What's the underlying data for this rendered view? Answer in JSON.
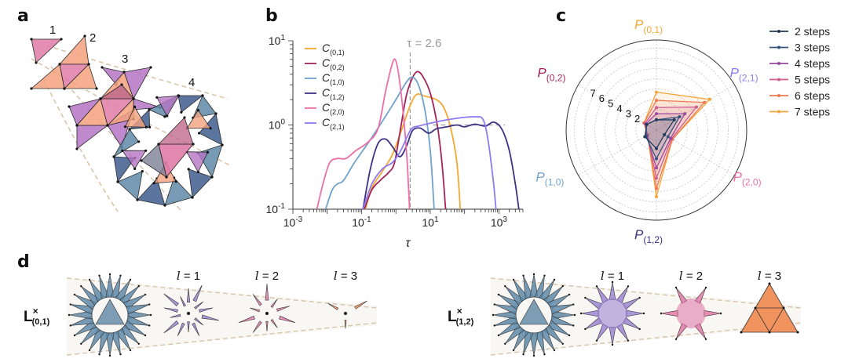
{
  "panels": {
    "a": {
      "label": "a",
      "step_labels": [
        "1",
        "2",
        "3",
        "4"
      ]
    },
    "b": {
      "label": "b"
    },
    "c": {
      "label": "c"
    },
    "d": {
      "label": "d"
    }
  },
  "colors": {
    "orange": "#f5a733",
    "crimson": "#a3245a",
    "lightblue": "#6fa2cc",
    "navy": "#3d3285",
    "pink": "#ec6fa6",
    "lavender": "#8f7af0",
    "steel": "#5f8aa8",
    "purple": "#b574c4",
    "salmon": "#f4a27e",
    "rose": "#e07ba8",
    "arrow": "#d8c7ad",
    "step2": "#1f3c5f",
    "step3": "#34547e",
    "step4": "#9a4a9e",
    "step5": "#cf5b8f",
    "step6": "#f07a52",
    "step7": "#f6a53a",
    "grid": "#bdbdbd",
    "dash": "#9a9a9a"
  },
  "chart_data": [
    {
      "panel": "b",
      "type": "line",
      "title": "",
      "xlabel": "τ",
      "ylabel": "",
      "xscale": "log",
      "yscale": "log",
      "xlim": [
        0.001,
        5000
      ],
      "ylim": [
        0.1,
        10
      ],
      "x_ticks": [
        {
          "value": 0.001,
          "label": "10",
          "exp": "-3"
        },
        {
          "value": 0.1,
          "label": "10",
          "exp": "-1"
        },
        {
          "value": 10,
          "label": "10",
          "exp": "1"
        },
        {
          "value": 1000,
          "label": "10",
          "exp": "3"
        }
      ],
      "y_ticks": [
        {
          "value": 0.1,
          "label": "10",
          "exp": "-1"
        },
        {
          "value": 1,
          "label": "10",
          "exp": "0"
        },
        {
          "value": 10,
          "label": "10",
          "exp": "1"
        }
      ],
      "legend_position": "top-left",
      "annotation": {
        "text": "τ = 2.6",
        "x": 2.6
      },
      "reference_line": {
        "y": 1.0,
        "x_from": 12,
        "x_to": 1500
      },
      "series": [
        {
          "name": "C(0,1)",
          "base": "C",
          "sub": "(0,1)",
          "color_key": "orange",
          "points": [
            [
              0.13,
              0.1
            ],
            [
              0.2,
              0.18
            ],
            [
              0.4,
              0.28
            ],
            [
              0.8,
              0.45
            ],
            [
              1.5,
              0.9
            ],
            [
              2.6,
              1.7
            ],
            [
              4,
              2.3
            ],
            [
              7,
              2.2
            ],
            [
              15,
              2.0
            ],
            [
              25,
              1.6
            ],
            [
              40,
              0.9
            ],
            [
              60,
              0.35
            ],
            [
              75,
              0.1
            ]
          ]
        },
        {
          "name": "C(0,2)",
          "base": "C",
          "sub": "(0,2)",
          "color_key": "crimson",
          "points": [
            [
              0.12,
              0.1
            ],
            [
              0.2,
              0.17
            ],
            [
              0.35,
              0.22
            ],
            [
              0.6,
              0.27
            ],
            [
              0.9,
              0.35
            ],
            [
              1.3,
              0.8
            ],
            [
              2.0,
              2.2
            ],
            [
              3,
              3.6
            ],
            [
              4.2,
              4.3
            ],
            [
              6,
              3.8
            ],
            [
              10,
              2.4
            ],
            [
              16,
              1.0
            ],
            [
              22,
              0.35
            ],
            [
              28,
              0.1
            ]
          ]
        },
        {
          "name": "C(1,0)",
          "base": "C",
          "sub": "(1,0)",
          "color_key": "lightblue",
          "points": [
            [
              0.009,
              0.1
            ],
            [
              0.014,
              0.17
            ],
            [
              0.02,
              0.2
            ],
            [
              0.03,
              0.22
            ],
            [
              0.06,
              0.35
            ],
            [
              0.15,
              0.6
            ],
            [
              0.4,
              1.1
            ],
            [
              1,
              2.0
            ],
            [
              2,
              3.2
            ],
            [
              3,
              3.7
            ],
            [
              4.5,
              3.0
            ],
            [
              7,
              1.5
            ],
            [
              10,
              0.5
            ],
            [
              13,
              0.1
            ]
          ]
        },
        {
          "name": "C(1,2)",
          "base": "C",
          "sub": "(1,2)",
          "color_key": "navy",
          "points": [
            [
              0.11,
              0.1
            ],
            [
              0.18,
              0.3
            ],
            [
              0.3,
              0.6
            ],
            [
              0.5,
              0.68
            ],
            [
              0.8,
              0.55
            ],
            [
              1.3,
              0.42
            ],
            [
              2,
              0.55
            ],
            [
              3,
              0.85
            ],
            [
              5,
              0.92
            ],
            [
              9,
              0.8
            ],
            [
              15,
              0.9
            ],
            [
              30,
              0.95
            ],
            [
              60,
              1.0
            ],
            [
              100,
              0.95
            ],
            [
              200,
              1.02
            ],
            [
              400,
              0.97
            ],
            [
              700,
              1.08
            ],
            [
              1200,
              0.9
            ],
            [
              2000,
              0.5
            ],
            [
              3000,
              0.2
            ],
            [
              3800,
              0.1
            ]
          ]
        },
        {
          "name": "C(2,0)",
          "base": "C",
          "sub": "(2,0)",
          "color_key": "pink",
          "points": [
            [
              0.005,
              0.1
            ],
            [
              0.008,
              0.22
            ],
            [
              0.012,
              0.36
            ],
            [
              0.02,
              0.4
            ],
            [
              0.035,
              0.4
            ],
            [
              0.07,
              0.5
            ],
            [
              0.15,
              0.62
            ],
            [
              0.3,
              0.9
            ],
            [
              0.5,
              2.5
            ],
            [
              0.75,
              5.0
            ],
            [
              0.95,
              6.0
            ],
            [
              1.2,
              4.0
            ],
            [
              1.6,
              1.5
            ],
            [
              2.1,
              0.4
            ],
            [
              2.5,
              0.1
            ]
          ]
        },
        {
          "name": "C(2,1)",
          "base": "C",
          "sub": "(2,1)",
          "color_key": "lavender",
          "points": [
            [
              0.11,
              0.1
            ],
            [
              0.2,
              0.2
            ],
            [
              0.4,
              0.3
            ],
            [
              0.8,
              0.36
            ],
            [
              1.4,
              0.5
            ],
            [
              2.2,
              0.75
            ],
            [
              3,
              0.92
            ],
            [
              5,
              0.98
            ],
            [
              10,
              1.05
            ],
            [
              30,
              1.15
            ],
            [
              80,
              1.22
            ],
            [
              200,
              1.25
            ],
            [
              350,
              1.15
            ],
            [
              500,
              0.6
            ],
            [
              700,
              0.2
            ],
            [
              820,
              0.1
            ]
          ]
        }
      ]
    },
    {
      "panel": "c",
      "type": "radar",
      "title": "",
      "axes": [
        {
          "name": "P(0,1)",
          "base": "P",
          "sub": "(0,1)",
          "color_key": "orange"
        },
        {
          "name": "P(2,1)",
          "base": "P",
          "sub": "(2,1)",
          "color_key": "lavender"
        },
        {
          "name": "P(2,0)",
          "base": "P",
          "sub": "(2,0)",
          "color_key": "pink"
        },
        {
          "name": "P(1,2)",
          "base": "P",
          "sub": "(1,2)",
          "color_key": "navy"
        },
        {
          "name": "P(1,0)",
          "base": "P",
          "sub": "(1,0)",
          "color_key": "lightblue"
        },
        {
          "name": "P(0,2)",
          "base": "P",
          "sub": "(0,2)",
          "color_key": "crimson"
        }
      ],
      "radial_ticks": [
        "2",
        "3",
        "4",
        "5",
        "6",
        "7"
      ],
      "radial_range": [
        0,
        8.8
      ],
      "rings": 8,
      "legend_position": "right",
      "series": [
        {
          "name": "2 steps",
          "color_key": "step2",
          "values": [
            1.0,
            2.0,
            0.9,
            1.8,
            1.3,
            1.1
          ]
        },
        {
          "name": "3 steps",
          "color_key": "step3",
          "values": [
            1.0,
            2.6,
            1.3,
            2.8,
            1.2,
            1.1
          ]
        },
        {
          "name": "4 steps",
          "color_key": "step4",
          "values": [
            1.6,
            3.2,
            1.6,
            3.7,
            1.1,
            1.2
          ]
        },
        {
          "name": "5 steps",
          "color_key": "step5",
          "values": [
            2.2,
            4.5,
            1.7,
            4.7,
            1.0,
            1.3
          ]
        },
        {
          "name": "6 steps",
          "color_key": "step6",
          "values": [
            2.9,
            5.4,
            1.8,
            5.7,
            1.0,
            1.4
          ]
        },
        {
          "name": "7 steps",
          "color_key": "step7",
          "values": [
            3.7,
            6.0,
            1.8,
            6.5,
            1.0,
            1.4
          ]
        }
      ]
    }
  ],
  "panel_d": {
    "rows": [
      {
        "label_base": "L",
        "label_sup": "×",
        "label_sub": "(0,1)",
        "levels": [
          {
            "prefix": "l",
            "eq": " = 1"
          },
          {
            "prefix": "l",
            "eq": " = 2"
          },
          {
            "prefix": "l",
            "eq": " = 3"
          }
        ]
      },
      {
        "label_base": "L",
        "label_sup": "×",
        "label_sub": "(1,2)",
        "levels": [
          {
            "prefix": "l",
            "eq": " = 1"
          },
          {
            "prefix": "l",
            "eq": " = 2"
          },
          {
            "prefix": "l",
            "eq": " = 3"
          }
        ]
      }
    ]
  }
}
